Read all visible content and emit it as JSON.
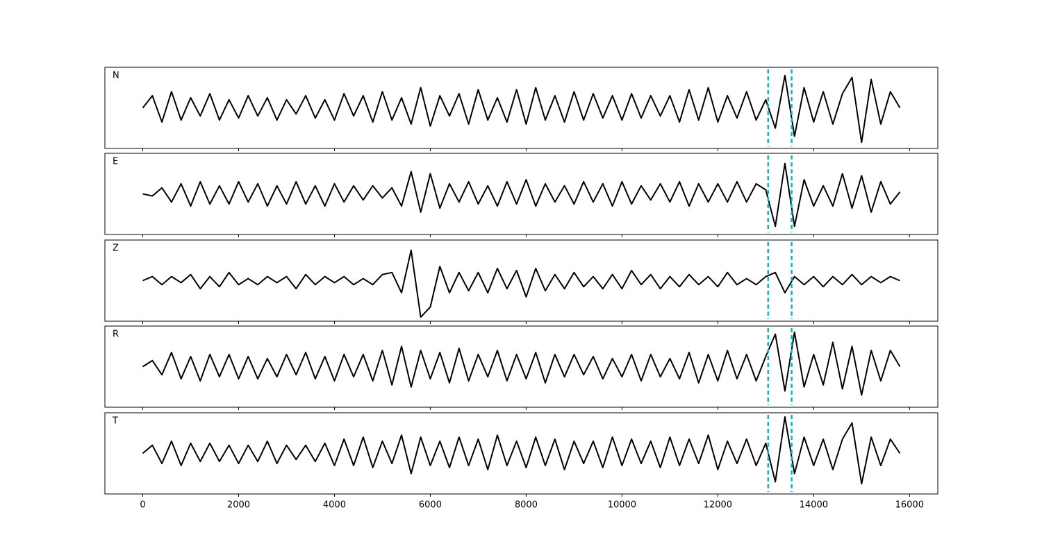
{
  "chart_data": {
    "type": "line",
    "x": [
      0,
      200,
      400,
      600,
      800,
      1000,
      1200,
      1400,
      1600,
      1800,
      2000,
      2200,
      2400,
      2600,
      2800,
      3000,
      3200,
      3400,
      3600,
      3800,
      4000,
      4200,
      4400,
      4600,
      4800,
      5000,
      5200,
      5400,
      5600,
      5800,
      6000,
      6200,
      6400,
      6600,
      6800,
      7000,
      7200,
      7400,
      7600,
      7800,
      8000,
      8200,
      8400,
      8600,
      8800,
      9000,
      9200,
      9400,
      9600,
      9800,
      10000,
      10200,
      10400,
      10600,
      10800,
      11000,
      11200,
      11400,
      11600,
      11800,
      12000,
      12200,
      12400,
      12600,
      12800,
      13000,
      13200,
      13400,
      13600,
      13800,
      14000,
      14200,
      14400,
      14600,
      14800,
      15000,
      15200,
      15400,
      15600,
      15800
    ],
    "xlim": [
      -790,
      16590
    ],
    "xticks": [
      0,
      2000,
      4000,
      6000,
      8000,
      10000,
      12000,
      14000,
      16000
    ],
    "ylim": [
      -1,
      1
    ],
    "vlines": [
      13050,
      13540
    ],
    "vline_color": "#00bfbf",
    "series": [
      {
        "name": "N",
        "color": "#000000",
        "values": [
          0.0,
          0.3,
          -0.35,
          0.4,
          -0.3,
          0.25,
          -0.2,
          0.35,
          -0.3,
          0.2,
          -0.25,
          0.3,
          -0.2,
          0.25,
          -0.3,
          0.2,
          -0.15,
          0.3,
          -0.25,
          0.2,
          -0.3,
          0.35,
          -0.2,
          0.3,
          -0.35,
          0.4,
          -0.3,
          0.25,
          -0.4,
          0.5,
          -0.45,
          0.3,
          -0.2,
          0.35,
          -0.4,
          0.45,
          -0.3,
          0.25,
          -0.35,
          0.45,
          -0.4,
          0.5,
          -0.3,
          0.3,
          -0.35,
          0.4,
          -0.3,
          0.35,
          -0.25,
          0.3,
          -0.3,
          0.35,
          -0.25,
          0.3,
          -0.2,
          0.3,
          -0.35,
          0.45,
          -0.3,
          0.5,
          -0.35,
          0.3,
          -0.25,
          0.4,
          -0.3,
          0.2,
          -0.5,
          0.8,
          -0.7,
          0.5,
          -0.35,
          0.4,
          -0.4,
          0.35,
          0.75,
          -0.85,
          0.7,
          -0.4,
          0.4,
          0.0
        ]
      },
      {
        "name": "E",
        "color": "#000000",
        "values": [
          0.0,
          -0.05,
          0.15,
          -0.2,
          0.25,
          -0.3,
          0.3,
          -0.25,
          0.2,
          -0.25,
          0.3,
          -0.2,
          0.25,
          -0.3,
          0.2,
          -0.25,
          0.3,
          -0.25,
          0.2,
          -0.3,
          0.25,
          -0.2,
          0.2,
          -0.15,
          0.2,
          -0.1,
          0.15,
          -0.3,
          0.55,
          -0.45,
          0.5,
          -0.35,
          0.25,
          -0.2,
          0.3,
          -0.25,
          0.2,
          -0.3,
          0.3,
          -0.25,
          0.35,
          -0.3,
          0.25,
          -0.2,
          0.2,
          -0.25,
          0.3,
          -0.2,
          0.25,
          -0.3,
          0.3,
          -0.25,
          0.2,
          -0.15,
          0.25,
          -0.2,
          0.3,
          -0.3,
          0.25,
          -0.2,
          0.25,
          -0.2,
          0.3,
          -0.2,
          0.25,
          0.1,
          -0.8,
          0.75,
          -0.8,
          0.35,
          -0.3,
          0.2,
          -0.3,
          0.5,
          -0.35,
          0.45,
          -0.45,
          0.3,
          -0.25,
          0.05
        ]
      },
      {
        "name": "Z",
        "color": "#000000",
        "values": [
          0.0,
          0.1,
          -0.1,
          0.1,
          -0.05,
          0.15,
          -0.2,
          0.1,
          -0.15,
          0.2,
          -0.1,
          0.05,
          -0.1,
          0.1,
          -0.05,
          0.1,
          -0.2,
          0.15,
          -0.1,
          0.1,
          -0.05,
          0.1,
          -0.1,
          0.05,
          -0.1,
          0.15,
          0.2,
          -0.3,
          0.75,
          -0.9,
          -0.65,
          0.35,
          -0.3,
          0.2,
          -0.25,
          0.2,
          -0.3,
          0.3,
          -0.2,
          0.25,
          -0.4,
          0.3,
          -0.25,
          0.15,
          -0.2,
          0.2,
          -0.15,
          0.1,
          -0.2,
          0.15,
          -0.2,
          0.25,
          -0.1,
          0.15,
          -0.2,
          0.1,
          -0.15,
          0.15,
          -0.1,
          0.1,
          -0.15,
          0.2,
          -0.1,
          0.05,
          -0.1,
          0.1,
          0.2,
          -0.3,
          0.1,
          -0.1,
          0.1,
          -0.15,
          0.1,
          -0.1,
          0.15,
          -0.1,
          0.1,
          -0.05,
          0.1,
          0.0
        ]
      },
      {
        "name": "R",
        "color": "#000000",
        "values": [
          0.0,
          0.15,
          -0.2,
          0.35,
          -0.3,
          0.25,
          -0.35,
          0.3,
          -0.25,
          0.3,
          -0.3,
          0.25,
          -0.3,
          0.2,
          -0.25,
          0.3,
          -0.2,
          0.35,
          -0.3,
          0.25,
          -0.35,
          0.3,
          -0.25,
          0.3,
          -0.35,
          0.4,
          -0.45,
          0.5,
          -0.5,
          0.4,
          -0.3,
          0.35,
          -0.4,
          0.45,
          -0.35,
          0.3,
          -0.25,
          0.4,
          -0.35,
          0.3,
          -0.3,
          0.35,
          -0.4,
          0.3,
          -0.25,
          0.3,
          -0.2,
          0.25,
          -0.3,
          0.2,
          -0.25,
          0.3,
          -0.35,
          0.3,
          -0.25,
          0.2,
          -0.3,
          0.35,
          -0.4,
          0.3,
          -0.35,
          0.4,
          -0.3,
          0.3,
          -0.35,
          0.25,
          0.8,
          -0.6,
          0.85,
          -0.5,
          0.3,
          -0.45,
          0.6,
          -0.55,
          0.5,
          -0.7,
          0.4,
          -0.35,
          0.4,
          0.0
        ]
      },
      {
        "name": "T",
        "color": "#000000",
        "values": [
          0.0,
          0.2,
          -0.25,
          0.3,
          -0.3,
          0.25,
          -0.2,
          0.25,
          -0.2,
          0.2,
          -0.25,
          0.2,
          -0.2,
          0.3,
          -0.25,
          0.2,
          -0.15,
          0.2,
          -0.2,
          0.25,
          -0.3,
          0.35,
          -0.3,
          0.4,
          -0.35,
          0.3,
          -0.25,
          0.45,
          -0.5,
          0.4,
          -0.3,
          0.3,
          -0.35,
          0.4,
          -0.3,
          0.35,
          -0.4,
          0.45,
          -0.3,
          0.3,
          -0.35,
          0.4,
          -0.3,
          0.35,
          -0.4,
          0.3,
          -0.25,
          0.3,
          -0.35,
          0.4,
          -0.3,
          0.35,
          -0.25,
          0.3,
          -0.35,
          0.4,
          -0.3,
          0.35,
          -0.25,
          0.45,
          -0.4,
          0.3,
          -0.25,
          0.35,
          -0.3,
          0.25,
          -0.7,
          0.9,
          -0.5,
          0.4,
          -0.3,
          0.35,
          -0.4,
          0.35,
          0.75,
          -0.75,
          0.4,
          -0.3,
          0.35,
          0.0
        ]
      }
    ]
  }
}
